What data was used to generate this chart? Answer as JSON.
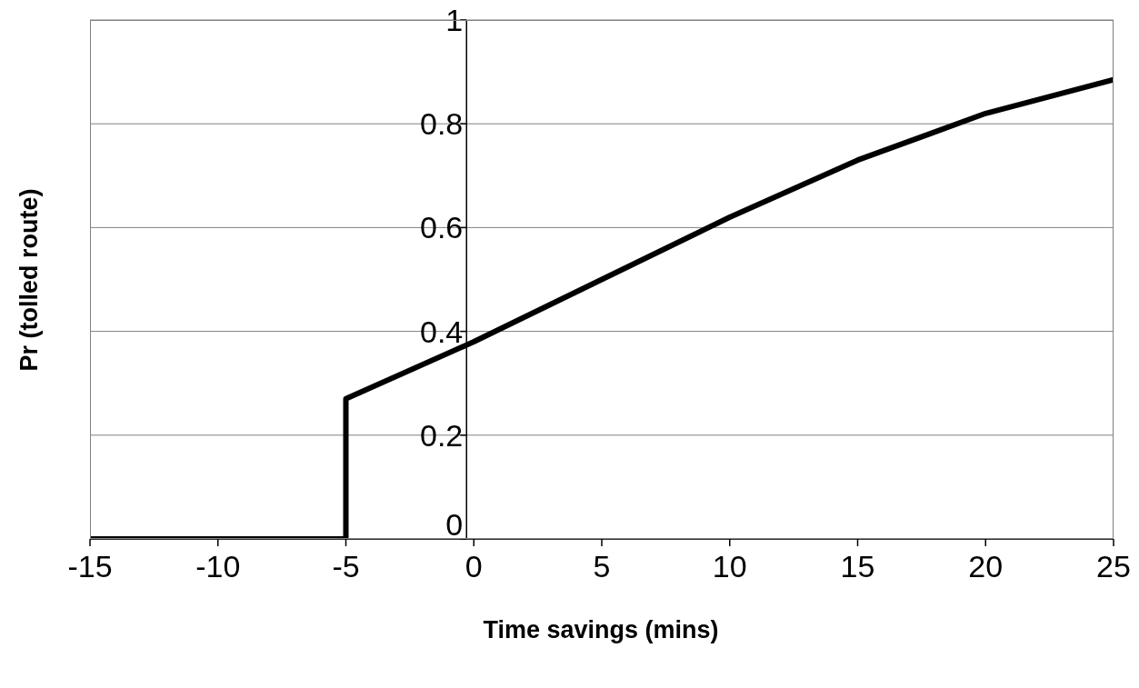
{
  "chart_data": {
    "type": "line",
    "xlabel": "Time savings (mins)",
    "ylabel": "Pr (tolled route)",
    "x": [
      -15,
      -5,
      -5,
      0,
      5,
      10,
      15,
      20,
      25
    ],
    "series": [
      {
        "color": "#000000",
        "values": [
          0,
          0,
          0.27,
          0.38,
          0.5,
          0.62,
          0.73,
          0.82,
          0.885
        ]
      }
    ],
    "xlim": [
      -15,
      25
    ],
    "xticks": [
      -15,
      -10,
      -5,
      0,
      5,
      10,
      15,
      20,
      25
    ],
    "ylim": [
      0,
      1
    ],
    "yticks": [
      0,
      0.2,
      0.4,
      0.6,
      0.8,
      1
    ],
    "grid": "y",
    "marker": "none",
    "line_style": "solid"
  }
}
